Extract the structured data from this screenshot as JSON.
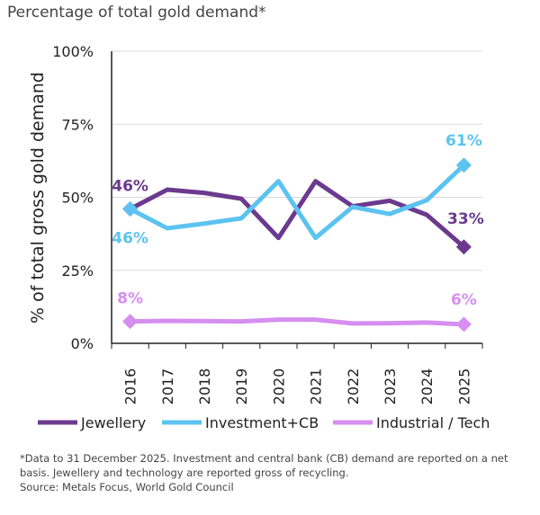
{
  "title": "Percentage of total gold demand*",
  "footnote": "*Data to 31 December 2025. Investment and central bank (CB) demand are reported on a net basis. Jewellery and technology are reported gross of recycling.",
  "source": "Source: Metals Focus, World Gold Council",
  "chart_data": {
    "type": "line",
    "ylabel": "% of total gross gold demand",
    "ylim": [
      0,
      100
    ],
    "yticks": [
      "0%",
      "25%",
      "50%",
      "75%",
      "100%"
    ],
    "grid": "horizontal",
    "legend_position": "bottom",
    "x": [
      "2016",
      "2017",
      "2018",
      "2019",
      "2020",
      "2021",
      "2022",
      "2023",
      "2024",
      "2025"
    ],
    "series": [
      {
        "name": "Jewellery",
        "color": "#6b3a8e",
        "values": [
          46,
          52.6,
          51.5,
          49.5,
          36.1,
          55.5,
          46.9,
          48.8,
          44,
          33
        ],
        "labels": {
          "first": "46%",
          "last": "33%"
        }
      },
      {
        "name": "Investment+CB",
        "color": "#5cc3f0",
        "values": [
          46,
          39.4,
          41,
          42.8,
          55.5,
          36.1,
          46.7,
          44.3,
          49,
          61
        ],
        "labels": {
          "first": "46%",
          "last": "61%"
        }
      },
      {
        "name": "Industrial / Tech",
        "color": "#d68ef0",
        "values": [
          7.5,
          7.7,
          7.6,
          7.5,
          8.1,
          8.1,
          6.8,
          6.9,
          7.1,
          6.5
        ],
        "labels": {
          "first": "8%",
          "last": "6%"
        }
      }
    ]
  }
}
